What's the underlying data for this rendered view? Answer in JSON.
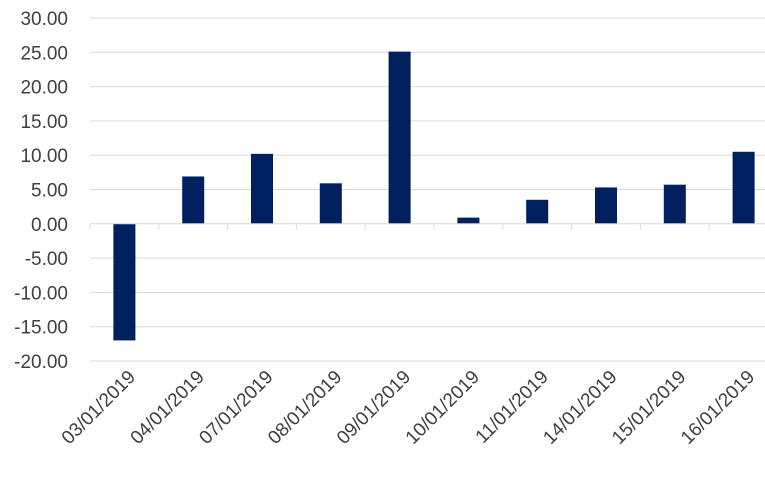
{
  "chart_data": {
    "type": "bar",
    "categories": [
      "03/01/2019",
      "04/01/2019",
      "07/01/2019",
      "08/01/2019",
      "09/01/2019",
      "10/01/2019",
      "11/01/2019",
      "14/01/2019",
      "15/01/2019",
      "16/01/2019"
    ],
    "values": [
      -17.0,
      6.9,
      10.2,
      5.9,
      25.1,
      0.9,
      3.5,
      5.3,
      5.7,
      10.5
    ],
    "yticks": [
      "30.00",
      "25.00",
      "20.00",
      "15.00",
      "10.00",
      "5.00",
      "0.00",
      "-5.00",
      "-10.00",
      "-15.00",
      "-20.00"
    ],
    "ylim": [
      -20,
      30
    ],
    "title": "",
    "xlabel": "",
    "ylabel": "",
    "grid": true,
    "bar_color": "#002060",
    "gridline_color": "#d9d9d9"
  }
}
